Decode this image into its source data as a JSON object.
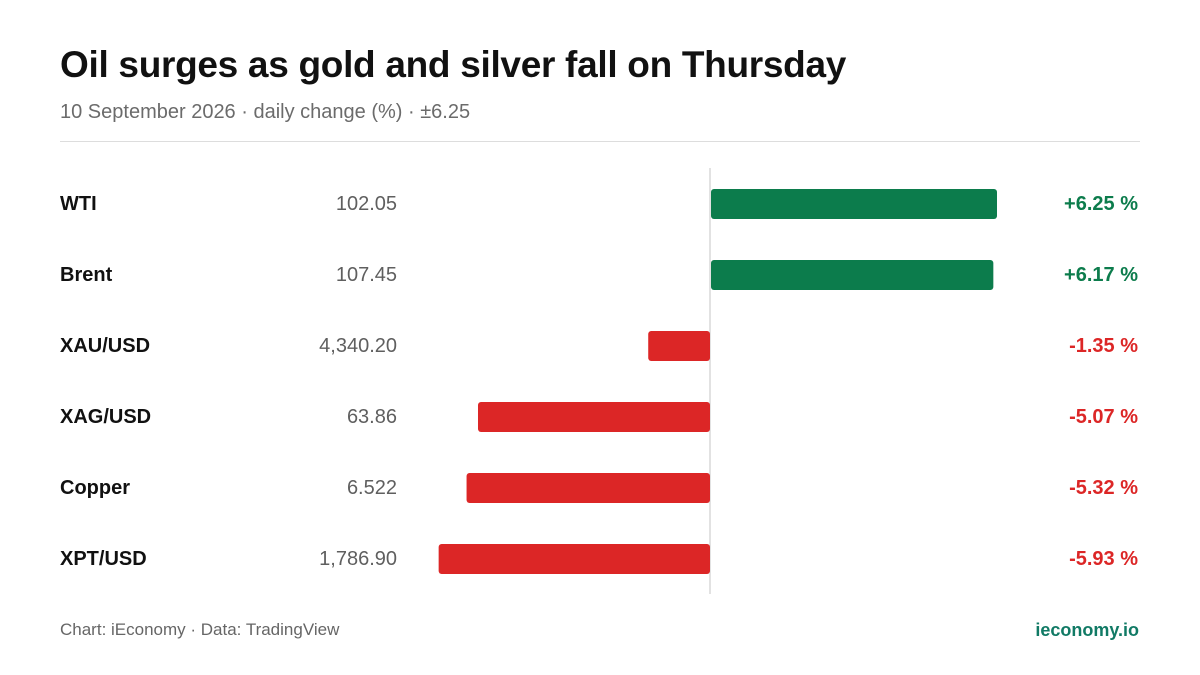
{
  "title": "Oil surges as gold and silver fall on Thursday",
  "subtitle": "10 September 2026 · daily change (%) · ±6.25",
  "footer": {
    "source": "Chart: iEconomy · Data: TradingView",
    "brand": "ieconomy.io"
  },
  "colors": {
    "positive": "#0c7c4c",
    "negative": "#dc2626",
    "label": "#111111",
    "price": "#5f5f5f",
    "brand": "#117a65"
  },
  "chart_data": {
    "type": "bar",
    "orientation": "horizontal",
    "xlim": [
      -6.25,
      6.25
    ],
    "categories": [
      "WTI",
      "Brent",
      "XAU/USD",
      "XAG/USD",
      "Copper",
      "XPT/USD"
    ],
    "prices": [
      "102.05",
      "107.45",
      "4,340.20",
      "63.86",
      "6.522",
      "1,786.90"
    ],
    "values": [
      6.25,
      6.17,
      -1.35,
      -5.07,
      -5.32,
      -5.93
    ],
    "value_labels": [
      "+6.25 %",
      "+6.17 %",
      "-1.35 %",
      "-5.07 %",
      "-5.32 %",
      "-5.93 %"
    ]
  }
}
